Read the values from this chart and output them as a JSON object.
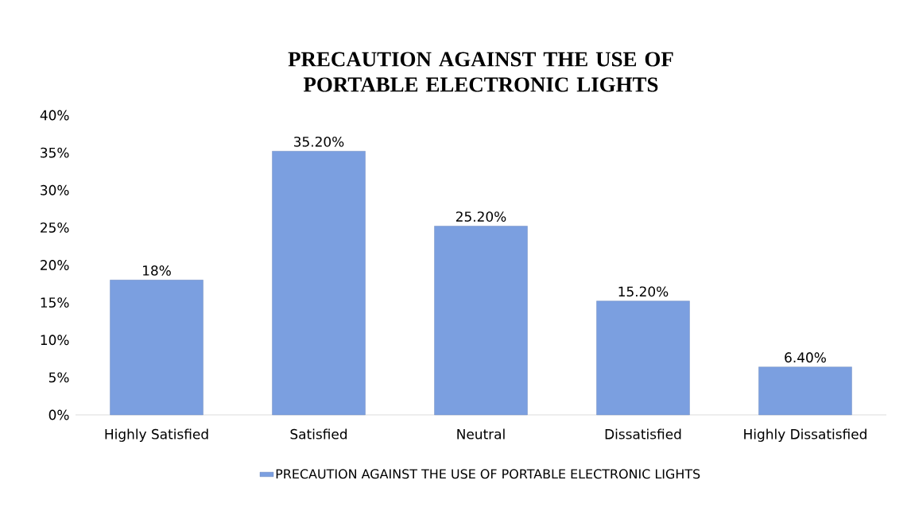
{
  "chart_data": {
    "type": "bar",
    "title": "PRECAUTION AGAINST THE USE OF PORTABLE ELECTRONIC LIGHTS",
    "categories": [
      "Highly Satisfied",
      "Satisfied",
      "Neutral",
      "Dissatisfied",
      "Highly Dissatisfied"
    ],
    "series": [
      {
        "name": "PRECAUTION AGAINST THE USE OF PORTABLE ELECTRONIC LIGHTS",
        "color": "#7b9fe0",
        "values": [
          18,
          35.2,
          25.2,
          15.2,
          6.4
        ],
        "value_labels": [
          "18%",
          "35.20%",
          "25.20%",
          "15.20%",
          "6.40%"
        ]
      }
    ],
    "ylim": [
      0,
      40
    ],
    "yticks": [
      {
        "value": 0,
        "label": "0%"
      },
      {
        "value": 5,
        "label": "5%"
      },
      {
        "value": 10,
        "label": "10%"
      },
      {
        "value": 15,
        "label": "15%"
      },
      {
        "value": 20,
        "label": "20%"
      },
      {
        "value": 25,
        "label": "25%"
      },
      {
        "value": 30,
        "label": "30%"
      },
      {
        "value": 35,
        "label": "35%"
      },
      {
        "value": 40,
        "label": "40%"
      }
    ],
    "grid": false,
    "legend": "bottom"
  }
}
